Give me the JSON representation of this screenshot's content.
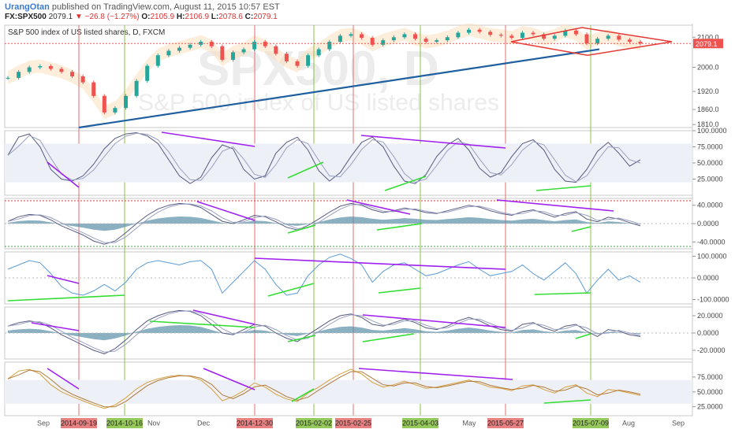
{
  "header": {
    "user": "UrangOtan",
    "published_text": "published on TradingView.com, August 11, 2015 10:57 EST",
    "symbol": "FX:SPX500",
    "last": "2079.1",
    "change": "−26.8 (−1.27%)",
    "o_label": "O:",
    "o_value": "2105.9",
    "h_label": "H:",
    "h_value": "2106.9",
    "l_label": "L:",
    "l_value": "2078.6",
    "c_label": "C:",
    "c_value": "2079.1"
  },
  "chart_data": {
    "type": "line",
    "main_title": "S&P 500 index of US listed shares, D, FXCM",
    "watermark_symbol": "SPX500, D",
    "watermark_name": "S&P 500 index of US listed shares",
    "price_axis_ticks": [
      "2100.0",
      "2000.0",
      "1920.0",
      "1860.0",
      "1810.0"
    ],
    "current_price_label": "2079.1",
    "colors": {
      "up": "#26a69a",
      "down": "#ef5350",
      "trend": "#1f5fa0",
      "divergence_bear": "#a020f0",
      "divergence_bull": "#33dd33",
      "vline_red": "#e57373",
      "vline_green": "#8bc34a",
      "wedge": "#e53935",
      "band": "#fbe0c0",
      "osc_fill": "#5a8fa8"
    },
    "price": {
      "ylim": [
        1800,
        2140
      ],
      "series": [
        1965,
        1985,
        2000,
        2004,
        1995,
        1985,
        1970,
        1950,
        1905,
        1850,
        1865,
        1905,
        1955,
        2005,
        2040,
        2055,
        2065,
        2075,
        2085,
        2070,
        2025,
        2050,
        2060,
        2085,
        2070,
        2045,
        2020,
        2005,
        2040,
        2060,
        2085,
        2105,
        2110,
        2098,
        2075,
        2090,
        2100,
        2110,
        2095,
        2085,
        2090,
        2100,
        2115,
        2125,
        2118,
        2108,
        2105,
        2098,
        2115,
        2110,
        2095,
        2105,
        2122,
        2110,
        2080,
        2095,
        2105,
        2092,
        2085,
        2079
      ]
    },
    "panels": [
      {
        "id": "stochastic",
        "ticks": [
          "100.0000",
          "75.0000",
          "50.0000",
          "25.0000"
        ],
        "ylim": [
          0,
          100
        ],
        "band": [
          20,
          80
        ],
        "series_a": [
          62,
          90,
          95,
          75,
          40,
          25,
          22,
          30,
          48,
          72,
          88,
          95,
          97,
          92,
          80,
          55,
          30,
          18,
          28,
          58,
          78,
          72,
          40,
          25,
          30,
          65,
          82,
          90,
          70,
          38,
          22,
          35,
          60,
          82,
          90,
          75,
          45,
          22,
          18,
          32,
          60,
          78,
          88,
          70,
          42,
          28,
          35,
          60,
          80,
          86,
          70,
          40,
          22,
          20,
          40,
          68,
          82,
          65,
          45,
          55
        ]
      },
      {
        "id": "macd",
        "ticks": [
          "40.0000",
          "0.0000",
          "-40.0000"
        ],
        "ylim": [
          -55,
          55
        ],
        "series_a": [
          5,
          15,
          20,
          18,
          8,
          -5,
          -15,
          -25,
          -38,
          -45,
          -38,
          -20,
          0,
          18,
          32,
          40,
          44,
          42,
          35,
          20,
          5,
          0,
          8,
          18,
          15,
          4,
          -8,
          -14,
          -4,
          10,
          25,
          38,
          44,
          40,
          30,
          24,
          28,
          34,
          30,
          24,
          22,
          28,
          34,
          40,
          36,
          28,
          22,
          18,
          26,
          30,
          22,
          14,
          22,
          26,
          10,
          4,
          14,
          10,
          2,
          -5
        ]
      },
      {
        "id": "cci",
        "ticks": [
          "100.0000",
          "0.0000",
          "-100.0000"
        ],
        "ylim": [
          -120,
          120
        ],
        "series_a": [
          40,
          60,
          80,
          70,
          20,
          -40,
          -70,
          -80,
          -60,
          -30,
          -60,
          -20,
          40,
          70,
          80,
          70,
          60,
          75,
          80,
          40,
          -70,
          -20,
          30,
          80,
          40,
          -30,
          -80,
          -70,
          10,
          60,
          95,
          110,
          90,
          60,
          -20,
          30,
          60,
          70,
          40,
          10,
          20,
          40,
          60,
          75,
          40,
          10,
          20,
          30,
          60,
          20,
          -10,
          30,
          70,
          20,
          -70,
          -10,
          40,
          -10,
          10,
          -20
        ]
      },
      {
        "id": "momentum",
        "ticks": [
          "20.0000",
          "0.0000",
          "-20.0000"
        ],
        "ylim": [
          -30,
          30
        ],
        "series_a": [
          8,
          12,
          14,
          12,
          6,
          -2,
          -8,
          -14,
          -20,
          -24,
          -18,
          -8,
          4,
          14,
          20,
          24,
          26,
          25,
          20,
          10,
          0,
          -2,
          4,
          10,
          8,
          0,
          -6,
          -10,
          -2,
          6,
          14,
          20,
          22,
          18,
          10,
          8,
          12,
          16,
          12,
          6,
          4,
          8,
          14,
          18,
          14,
          8,
          4,
          2,
          10,
          12,
          6,
          2,
          8,
          10,
          2,
          -4,
          4,
          2,
          -2,
          -4
        ]
      },
      {
        "id": "rsi",
        "ticks": [
          "75.0000",
          "50.0000",
          "25.0000"
        ],
        "ylim": [
          10,
          100
        ],
        "band": [
          30,
          70
        ],
        "series_a": [
          72,
          85,
          88,
          80,
          62,
          50,
          42,
          35,
          28,
          22,
          28,
          40,
          55,
          66,
          72,
          76,
          78,
          76,
          70,
          55,
          35,
          42,
          52,
          65,
          58,
          46,
          38,
          34,
          48,
          58,
          70,
          80,
          88,
          80,
          66,
          58,
          62,
          68,
          62,
          56,
          58,
          62,
          66,
          70,
          64,
          58,
          56,
          52,
          60,
          62,
          54,
          48,
          58,
          62,
          48,
          42,
          54,
          52,
          48,
          44
        ]
      }
    ],
    "date_axis": [
      {
        "label": "Sep",
        "highlight": false
      },
      {
        "label": "2014-09-19",
        "highlight": true,
        "color": "#e57373"
      },
      {
        "label": "2014-10-16",
        "highlight": true,
        "color": "#8bc34a"
      },
      {
        "label": "Nov",
        "highlight": false
      },
      {
        "label": "Dec",
        "highlight": false
      },
      {
        "label": "2014-12-30",
        "highlight": true,
        "color": "#e57373"
      },
      {
        "label": "2015-02-02",
        "highlight": true,
        "color": "#8bc34a"
      },
      {
        "label": "2015-02-25",
        "highlight": true,
        "color": "#e57373"
      },
      {
        "label": "2015-04-03",
        "highlight": true,
        "color": "#8bc34a"
      },
      {
        "label": "May",
        "highlight": false
      },
      {
        "label": "2015-05-27",
        "highlight": true,
        "color": "#e57373"
      },
      {
        "label": "2015-07-09",
        "highlight": true,
        "color": "#8bc34a"
      },
      {
        "label": "Aug",
        "highlight": false
      },
      {
        "label": "Sep",
        "highlight": false
      }
    ]
  }
}
